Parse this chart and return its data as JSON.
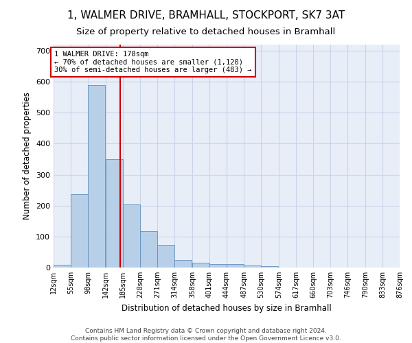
{
  "title_line1": "1, WALMER DRIVE, BRAMHALL, STOCKPORT, SK7 3AT",
  "title_line2": "Size of property relative to detached houses in Bramhall",
  "xlabel": "Distribution of detached houses by size in Bramhall",
  "ylabel": "Number of detached properties",
  "bin_edges": [
    12,
    55,
    98,
    142,
    185,
    228,
    271,
    314,
    358,
    401,
    444,
    487,
    530,
    574,
    617,
    660,
    703,
    746,
    790,
    833,
    876
  ],
  "bar_heights": [
    8,
    237,
    590,
    350,
    204,
    118,
    73,
    25,
    15,
    10,
    10,
    6,
    5,
    0,
    0,
    0,
    0,
    0,
    0,
    0
  ],
  "bar_color": "#b8cfe8",
  "bar_edge_color": "#6090c0",
  "vline_x": 178,
  "vline_color": "#cc0000",
  "annotation_text": "1 WALMER DRIVE: 178sqm\n← 70% of detached houses are smaller (1,120)\n30% of semi-detached houses are larger (483) →",
  "annotation_box_color": "#cc0000",
  "annotation_text_color": "#000000",
  "ylim": [
    0,
    720
  ],
  "yticks": [
    0,
    100,
    200,
    300,
    400,
    500,
    600,
    700
  ],
  "tick_labels": [
    "12sqm",
    "55sqm",
    "98sqm",
    "142sqm",
    "185sqm",
    "228sqm",
    "271sqm",
    "314sqm",
    "358sqm",
    "401sqm",
    "444sqm",
    "487sqm",
    "530sqm",
    "574sqm",
    "617sqm",
    "660sqm",
    "703sqm",
    "746sqm",
    "790sqm",
    "833sqm",
    "876sqm"
  ],
  "footer_line1": "Contains HM Land Registry data © Crown copyright and database right 2024.",
  "footer_line2": "Contains public sector information licensed under the Open Government Licence v3.0.",
  "background_color": "#ffffff",
  "plot_bg_color": "#e8eef8",
  "grid_color": "#c8d4e8",
  "title_fontsize": 11,
  "subtitle_fontsize": 9.5,
  "ann_fontsize": 7.5
}
